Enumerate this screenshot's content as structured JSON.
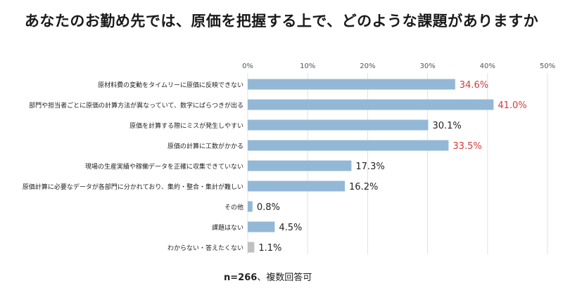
{
  "title": "あなたのお勤め先では、原価を把握する上で、どのような課題がありますか",
  "footnote": {
    "n": "n=266",
    "note": "、複数回答可"
  },
  "colors": {
    "bar": "#93b8d6",
    "bar_other": "#bfbfbf",
    "highlight_text": "#d33a3a",
    "normal_text": "#222222",
    "grid": "#e0e0e0"
  },
  "chart_data": {
    "type": "bar",
    "orientation": "horizontal",
    "categories": [
      "原材料費の変動をタイムリーに原価に反映できない",
      "部門や担当者ごとに原価の計算方法が異なっていて、数字にばらつきが出る",
      "原価を計算する際にミスが発生しやすい",
      "原価の計算に工数がかかる",
      "現場の生産実績や稼働データを正確に収集できていない",
      "原価計算に必要なデータが各部門に分かれており、集約・整合・集計が難しい",
      "その他",
      "課題はない",
      "わからない・答えたくない"
    ],
    "values": [
      34.6,
      41.0,
      30.1,
      33.5,
      17.3,
      16.2,
      0.8,
      4.5,
      1.1
    ],
    "value_labels": [
      "34.6%",
      "41.0%",
      "30.1%",
      "33.5%",
      "17.3%",
      "16.2%",
      "0.8%",
      "4.5%",
      "1.1%"
    ],
    "highlighted": [
      true,
      true,
      false,
      true,
      false,
      false,
      false,
      false,
      false
    ],
    "gray_bars": [
      false,
      false,
      false,
      false,
      false,
      false,
      false,
      false,
      true
    ],
    "xlim": [
      0,
      50
    ],
    "ticks": [
      0,
      10,
      20,
      30,
      40,
      50
    ],
    "tick_labels": [
      "0%",
      "10%",
      "20%",
      "30%",
      "40%",
      "50%"
    ],
    "grid": true,
    "legend": "none"
  }
}
